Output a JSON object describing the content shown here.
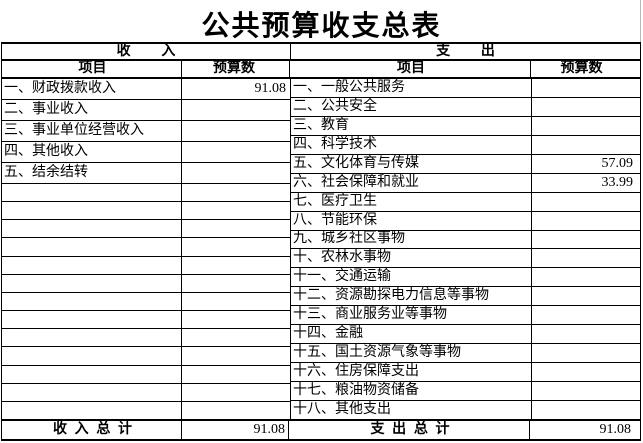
{
  "title": "公共预算收支总表",
  "table": {
    "revenue": {
      "section_header": "收入",
      "col_item": "项目",
      "col_budget": "预算数",
      "items": [
        {
          "label": "一、财政拨款收入",
          "value": "91.08"
        },
        {
          "label": "二、事业收入",
          "value": ""
        },
        {
          "label": "三、事业单位经营收入",
          "value": ""
        },
        {
          "label": "四、其他收入",
          "value": ""
        },
        {
          "label": "五、结余结转",
          "value": ""
        }
      ],
      "total_label": "收入总计",
      "total_value": "91.08"
    },
    "expenditure": {
      "section_header": "支出",
      "col_item": "项目",
      "col_budget": "预算数",
      "items": [
        {
          "label": "一、一般公共服务",
          "value": ""
        },
        {
          "label": "二、公共安全",
          "value": ""
        },
        {
          "label": "三、教育",
          "value": ""
        },
        {
          "label": "四、科学技术",
          "value": ""
        },
        {
          "label": "五、文化体育与传媒",
          "value": "57.09"
        },
        {
          "label": "六、社会保障和就业",
          "value": "33.99"
        },
        {
          "label": "七、医疗卫生",
          "value": ""
        },
        {
          "label": "八、节能环保",
          "value": ""
        },
        {
          "label": "九、城乡社区事物",
          "value": ""
        },
        {
          "label": "十、农林水事物",
          "value": ""
        },
        {
          "label": "十一、交通运输",
          "value": ""
        },
        {
          "label": "十二、资源勘探电力信息等事物",
          "value": ""
        },
        {
          "label": "十三、商业服务业等事物",
          "value": ""
        },
        {
          "label": "十四、金融",
          "value": ""
        },
        {
          "label": "十五、国土资源气象等事物",
          "value": ""
        },
        {
          "label": "十六、住房保障支出",
          "value": ""
        },
        {
          "label": "十七、粮油物资储备",
          "value": ""
        },
        {
          "label": "十八、其他支出",
          "value": ""
        }
      ],
      "active_cell_row_index": 6,
      "total_label": "支出总计",
      "total_value": "91.08"
    }
  },
  "colors": {
    "border": "#000000",
    "background": "#ffffff",
    "sheet_edge_gray": "#b8b8b8",
    "selection": "#000000"
  }
}
